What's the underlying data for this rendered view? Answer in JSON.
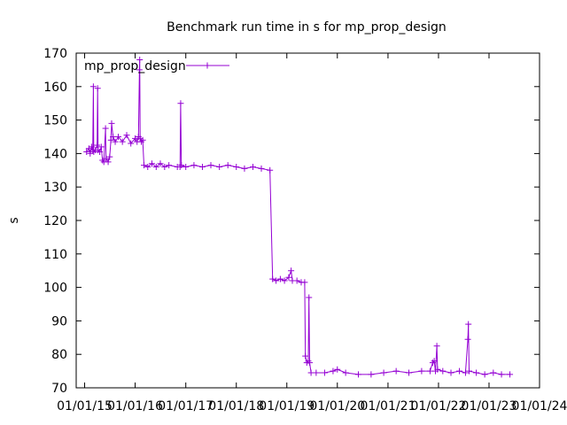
{
  "chart_data": {
    "type": "line",
    "title": "Benchmark run time in s for mp_prop_design",
    "xlabel": "",
    "ylabel": "s",
    "ylim": [
      70,
      170
    ],
    "yticks": [
      70,
      80,
      90,
      100,
      110,
      120,
      130,
      140,
      150,
      160,
      170
    ],
    "xlim": [
      "2014-11-01",
      "2024-01-01"
    ],
    "xticks": [
      "01/01/15",
      "01/01/16",
      "01/01/17",
      "01/01/18",
      "01/01/19",
      "01/01/20",
      "01/01/21",
      "01/01/22",
      "01/01/23",
      "01/01/24"
    ],
    "grid": false,
    "legend_position": "top-left",
    "color": "#9400D3",
    "series": [
      {
        "name": "mp_prop_design",
        "points": [
          [
            "2015-01-15",
            140.5
          ],
          [
            "2015-02-01",
            141.5
          ],
          [
            "2015-02-10",
            140.0
          ],
          [
            "2015-02-20",
            142.0
          ],
          [
            "2015-03-01",
            141.0
          ],
          [
            "2015-03-05",
            160.0
          ],
          [
            "2015-03-08",
            140.5
          ],
          [
            "2015-03-20",
            141.0
          ],
          [
            "2015-04-01",
            142.5
          ],
          [
            "2015-04-05",
            159.5
          ],
          [
            "2015-04-08",
            141.0
          ],
          [
            "2015-04-20",
            140.5
          ],
          [
            "2015-05-01",
            142.0
          ],
          [
            "2015-05-10",
            138.0
          ],
          [
            "2015-05-20",
            137.5
          ],
          [
            "2015-06-01",
            147.5
          ],
          [
            "2015-06-05",
            138.5
          ],
          [
            "2015-06-20",
            137.5
          ],
          [
            "2015-07-01",
            139.0
          ],
          [
            "2015-07-10",
            144.0
          ],
          [
            "2015-07-15",
            149.0
          ],
          [
            "2015-07-25",
            145.0
          ],
          [
            "2015-08-10",
            143.5
          ],
          [
            "2015-09-01",
            145.0
          ],
          [
            "2015-10-01",
            143.5
          ],
          [
            "2015-11-01",
            145.5
          ],
          [
            "2015-12-01",
            143.0
          ],
          [
            "2016-01-01",
            144.5
          ],
          [
            "2016-01-15",
            143.5
          ],
          [
            "2016-01-25",
            145.0
          ],
          [
            "2016-02-01",
            165.0
          ],
          [
            "2016-02-03",
            168.0
          ],
          [
            "2016-02-06",
            144.5
          ],
          [
            "2016-02-15",
            143.5
          ],
          [
            "2016-02-25",
            144.0
          ],
          [
            "2016-03-05",
            136.5
          ],
          [
            "2016-04-01",
            136.0
          ],
          [
            "2016-05-01",
            137.0
          ],
          [
            "2016-06-01",
            136.0
          ],
          [
            "2016-07-01",
            137.0
          ],
          [
            "2016-08-01",
            136.0
          ],
          [
            "2016-09-01",
            136.5
          ],
          [
            "2016-11-01",
            136.0
          ],
          [
            "2016-11-20",
            136.0
          ],
          [
            "2016-11-25",
            155.0
          ],
          [
            "2016-11-30",
            136.5
          ],
          [
            "2017-01-01",
            136.0
          ],
          [
            "2017-03-01",
            136.5
          ],
          [
            "2017-05-01",
            136.0
          ],
          [
            "2017-07-01",
            136.5
          ],
          [
            "2017-09-01",
            136.0
          ],
          [
            "2017-11-01",
            136.5
          ],
          [
            "2018-01-01",
            136.0
          ],
          [
            "2018-03-01",
            135.5
          ],
          [
            "2018-05-01",
            136.0
          ],
          [
            "2018-07-01",
            135.5
          ],
          [
            "2018-09-01",
            135.0
          ],
          [
            "2018-09-20",
            102.5
          ],
          [
            "2018-10-15",
            102.0
          ],
          [
            "2018-11-15",
            102.5
          ],
          [
            "2018-12-15",
            102.0
          ],
          [
            "2019-01-15",
            103.0
          ],
          [
            "2019-02-01",
            105.0
          ],
          [
            "2019-02-10",
            102.0
          ],
          [
            "2019-03-15",
            102.0
          ],
          [
            "2019-04-15",
            101.5
          ],
          [
            "2019-05-10",
            101.5
          ],
          [
            "2019-05-15",
            79.5
          ],
          [
            "2019-05-25",
            77.5
          ],
          [
            "2019-06-05",
            78.0
          ],
          [
            "2019-06-10",
            97.0
          ],
          [
            "2019-06-15",
            77.5
          ],
          [
            "2019-06-25",
            74.5
          ],
          [
            "2019-08-01",
            74.5
          ],
          [
            "2019-10-01",
            74.5
          ],
          [
            "2019-12-01",
            75.0
          ],
          [
            "2020-01-01",
            75.5
          ],
          [
            "2020-03-01",
            74.5
          ],
          [
            "2020-06-01",
            74.0
          ],
          [
            "2020-09-01",
            74.0
          ],
          [
            "2020-12-01",
            74.5
          ],
          [
            "2021-03-01",
            75.0
          ],
          [
            "2021-06-01",
            74.5
          ],
          [
            "2021-09-01",
            75.0
          ],
          [
            "2021-11-01",
            75.0
          ],
          [
            "2021-11-20",
            77.5
          ],
          [
            "2021-12-01",
            78.0
          ],
          [
            "2021-12-10",
            75.0
          ],
          [
            "2021-12-20",
            82.5
          ],
          [
            "2021-12-25",
            75.5
          ],
          [
            "2022-02-01",
            75.0
          ],
          [
            "2022-04-01",
            74.5
          ],
          [
            "2022-06-01",
            75.0
          ],
          [
            "2022-07-15",
            74.5
          ],
          [
            "2022-08-01",
            84.5
          ],
          [
            "2022-08-05",
            89.0
          ],
          [
            "2022-08-10",
            75.0
          ],
          [
            "2022-10-01",
            74.5
          ],
          [
            "2022-12-01",
            74.0
          ],
          [
            "2023-02-01",
            74.5
          ],
          [
            "2023-04-01",
            74.0
          ],
          [
            "2023-06-01",
            74.0
          ]
        ]
      }
    ]
  }
}
